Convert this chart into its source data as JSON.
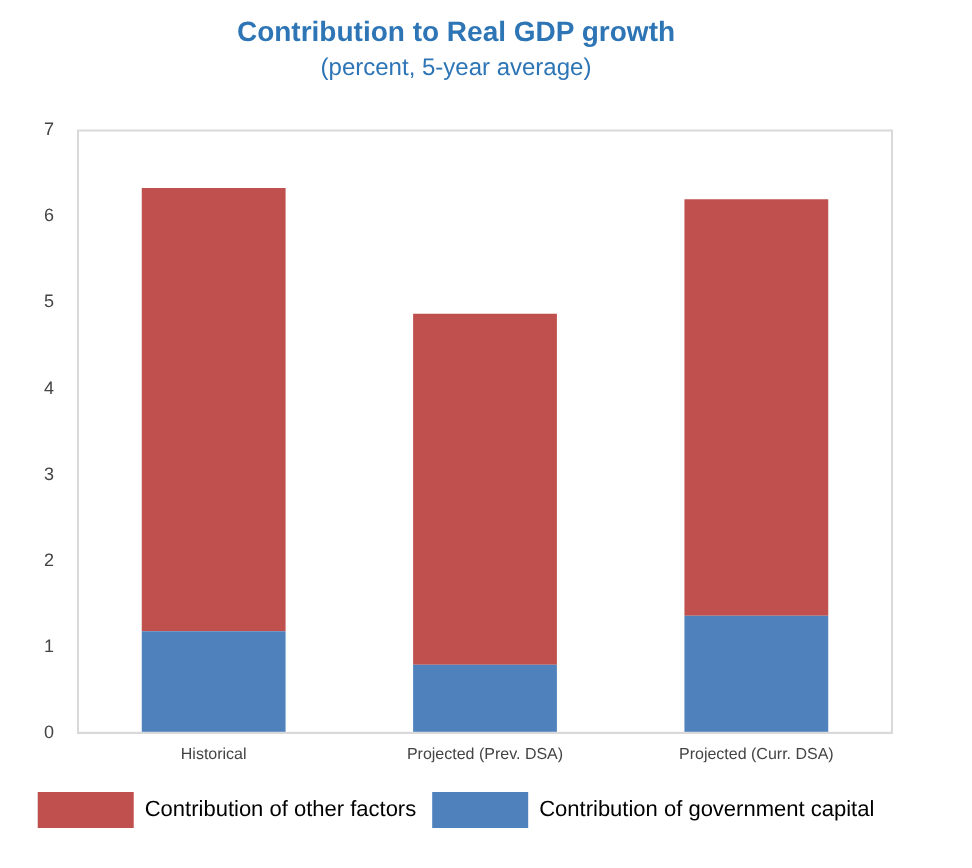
{
  "chart_data": {
    "type": "bar",
    "title": "Contribution to Real GDP growth",
    "subtitle": "(percent, 5-year average)",
    "categories": [
      "Historical",
      "Projected (Prev. DSA)",
      "Projected (Curr. DSA)"
    ],
    "stacked": true,
    "series": [
      {
        "name": "Contribution of government capital",
        "color": "#4f81bd",
        "values": [
          1.18,
          0.79,
          1.36
        ]
      },
      {
        "name": "Contribution of other factors",
        "color": "#c0504d",
        "values": [
          5.15,
          4.08,
          4.84
        ]
      }
    ],
    "ylim": [
      0,
      7
    ],
    "yticks": [
      0,
      1,
      2,
      3,
      4,
      5,
      6,
      7
    ],
    "grid": false,
    "legend": "bottom"
  }
}
